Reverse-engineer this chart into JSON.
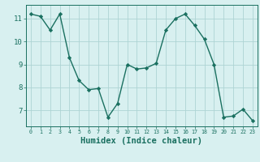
{
  "x": [
    0,
    1,
    2,
    3,
    4,
    5,
    6,
    7,
    8,
    9,
    10,
    11,
    12,
    13,
    14,
    15,
    16,
    17,
    18,
    19,
    20,
    21,
    22,
    23
  ],
  "y": [
    11.2,
    11.1,
    10.5,
    11.2,
    9.3,
    8.3,
    7.9,
    7.95,
    6.7,
    7.3,
    9.0,
    8.8,
    8.85,
    9.05,
    10.5,
    11.0,
    11.2,
    10.7,
    10.1,
    9.0,
    6.7,
    6.75,
    7.05,
    6.55
  ],
  "line_color": "#1a7060",
  "marker": "D",
  "marker_size": 2.2,
  "bg_color": "#d8f0f0",
  "grid_color": "#aed4d4",
  "tick_color": "#1a7060",
  "xlabel": "Humidex (Indice chaleur)",
  "xlabel_fontsize": 7.5,
  "ylabel_ticks": [
    7,
    8,
    9,
    10,
    11
  ],
  "xlim": [
    -0.5,
    23.5
  ],
  "ylim": [
    6.3,
    11.6
  ],
  "title": ""
}
